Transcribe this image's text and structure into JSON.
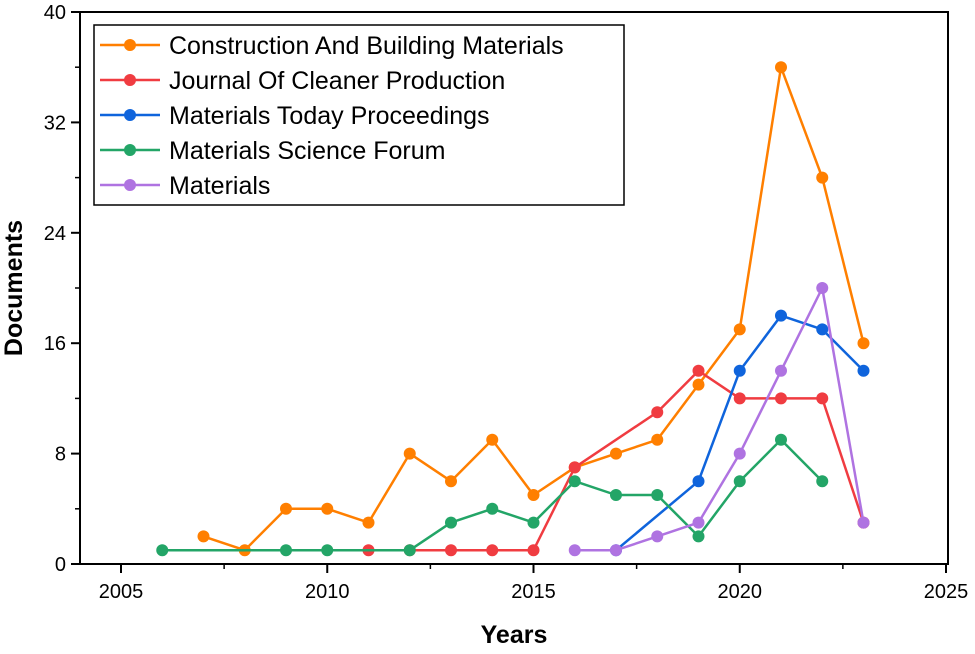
{
  "chart_data": {
    "type": "line",
    "title": "",
    "xlabel": "Years",
    "ylabel": "Documents",
    "xlim": [
      2003,
      2025
    ],
    "ylim": [
      0,
      40
    ],
    "xticks": [
      2005,
      2010,
      2015,
      2020,
      2025
    ],
    "yticks": [
      0,
      8,
      16,
      24,
      32,
      40
    ],
    "grid": false,
    "legend_position": "top-left",
    "series": [
      {
        "name": "Construction And Building Materials",
        "color": "#FF7F00",
        "x": [
          2007,
          2008,
          2009,
          2010,
          2011,
          2012,
          2013,
          2014,
          2015,
          2016,
          2017,
          2018,
          2019,
          2020,
          2021,
          2022,
          2023
        ],
        "y": [
          2,
          1,
          4,
          4,
          3,
          8,
          6,
          9,
          5,
          7,
          8,
          9,
          13,
          17,
          36,
          28,
          16
        ]
      },
      {
        "name": "Journal Of Cleaner Production",
        "color": "#F03C41",
        "x": [
          2011,
          2012,
          2013,
          2014,
          2015,
          2016,
          2018,
          2019,
          2020,
          2021,
          2022,
          2023
        ],
        "y": [
          1,
          1,
          1,
          1,
          1,
          7,
          11,
          14,
          12,
          12,
          12,
          3
        ]
      },
      {
        "name": "Materials Today Proceedings",
        "color": "#0F64DC",
        "x": [
          2017,
          2019,
          2020,
          2021,
          2022,
          2023
        ],
        "y": [
          1,
          6,
          14,
          18,
          17,
          14
        ]
      },
      {
        "name": "Materials Science Forum",
        "color": "#23A567",
        "x": [
          2006,
          2009,
          2010,
          2012,
          2013,
          2014,
          2015,
          2016,
          2017,
          2018,
          2019,
          2020,
          2021,
          2022
        ],
        "y": [
          1,
          1,
          1,
          1,
          3,
          4,
          3,
          6,
          5,
          5,
          2,
          6,
          9,
          6
        ]
      },
      {
        "name": "Materials",
        "color": "#AF73E1",
        "x": [
          2016,
          2017,
          2018,
          2019,
          2020,
          2021,
          2022,
          2023
        ],
        "y": [
          1,
          1,
          2,
          3,
          8,
          14,
          20,
          3
        ]
      }
    ]
  }
}
